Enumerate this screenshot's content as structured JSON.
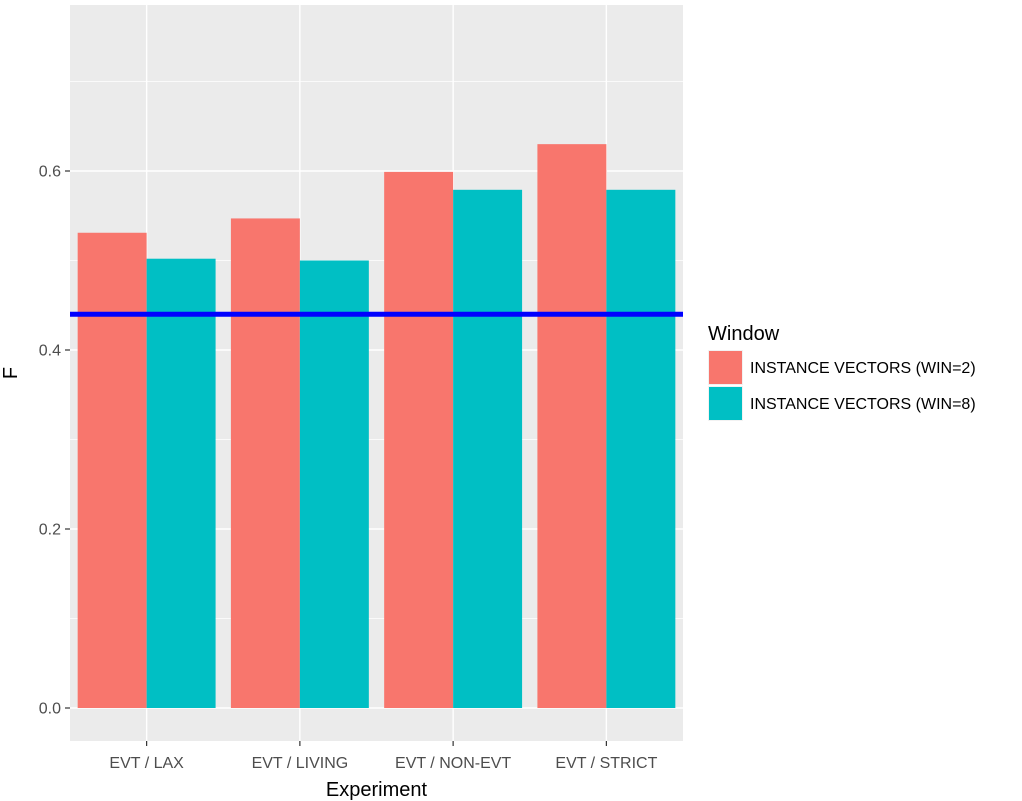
{
  "chart_data": {
    "type": "bar",
    "title": "",
    "xlabel": "Experiment",
    "ylabel": "F",
    "categories": [
      "EVT / LAX",
      "EVT / LIVING",
      "EVT / NON-EVT",
      "EVT / STRICT"
    ],
    "series": [
      {
        "name": "INSTANCE VECTORS (WIN=2)",
        "color": "#F8766D",
        "values": [
          0.531,
          0.547,
          0.599,
          0.63
        ]
      },
      {
        "name": "INSTANCE VECTORS (WIN=8)",
        "color": "#00BFC4",
        "values": [
          0.502,
          0.5,
          0.579,
          0.579
        ]
      }
    ],
    "ylim": [
      0,
      0.7
    ],
    "yticks": [
      0.0,
      0.2,
      0.4,
      0.6
    ],
    "ytick_labels": [
      "0.0",
      "0.2",
      "0.4",
      "0.6"
    ],
    "reference_line": {
      "y": 0.44,
      "color": "#0000FF"
    },
    "legend": {
      "title": "Window",
      "placement": "right"
    },
    "grid": true,
    "panel_background": "#EBEBEB"
  }
}
